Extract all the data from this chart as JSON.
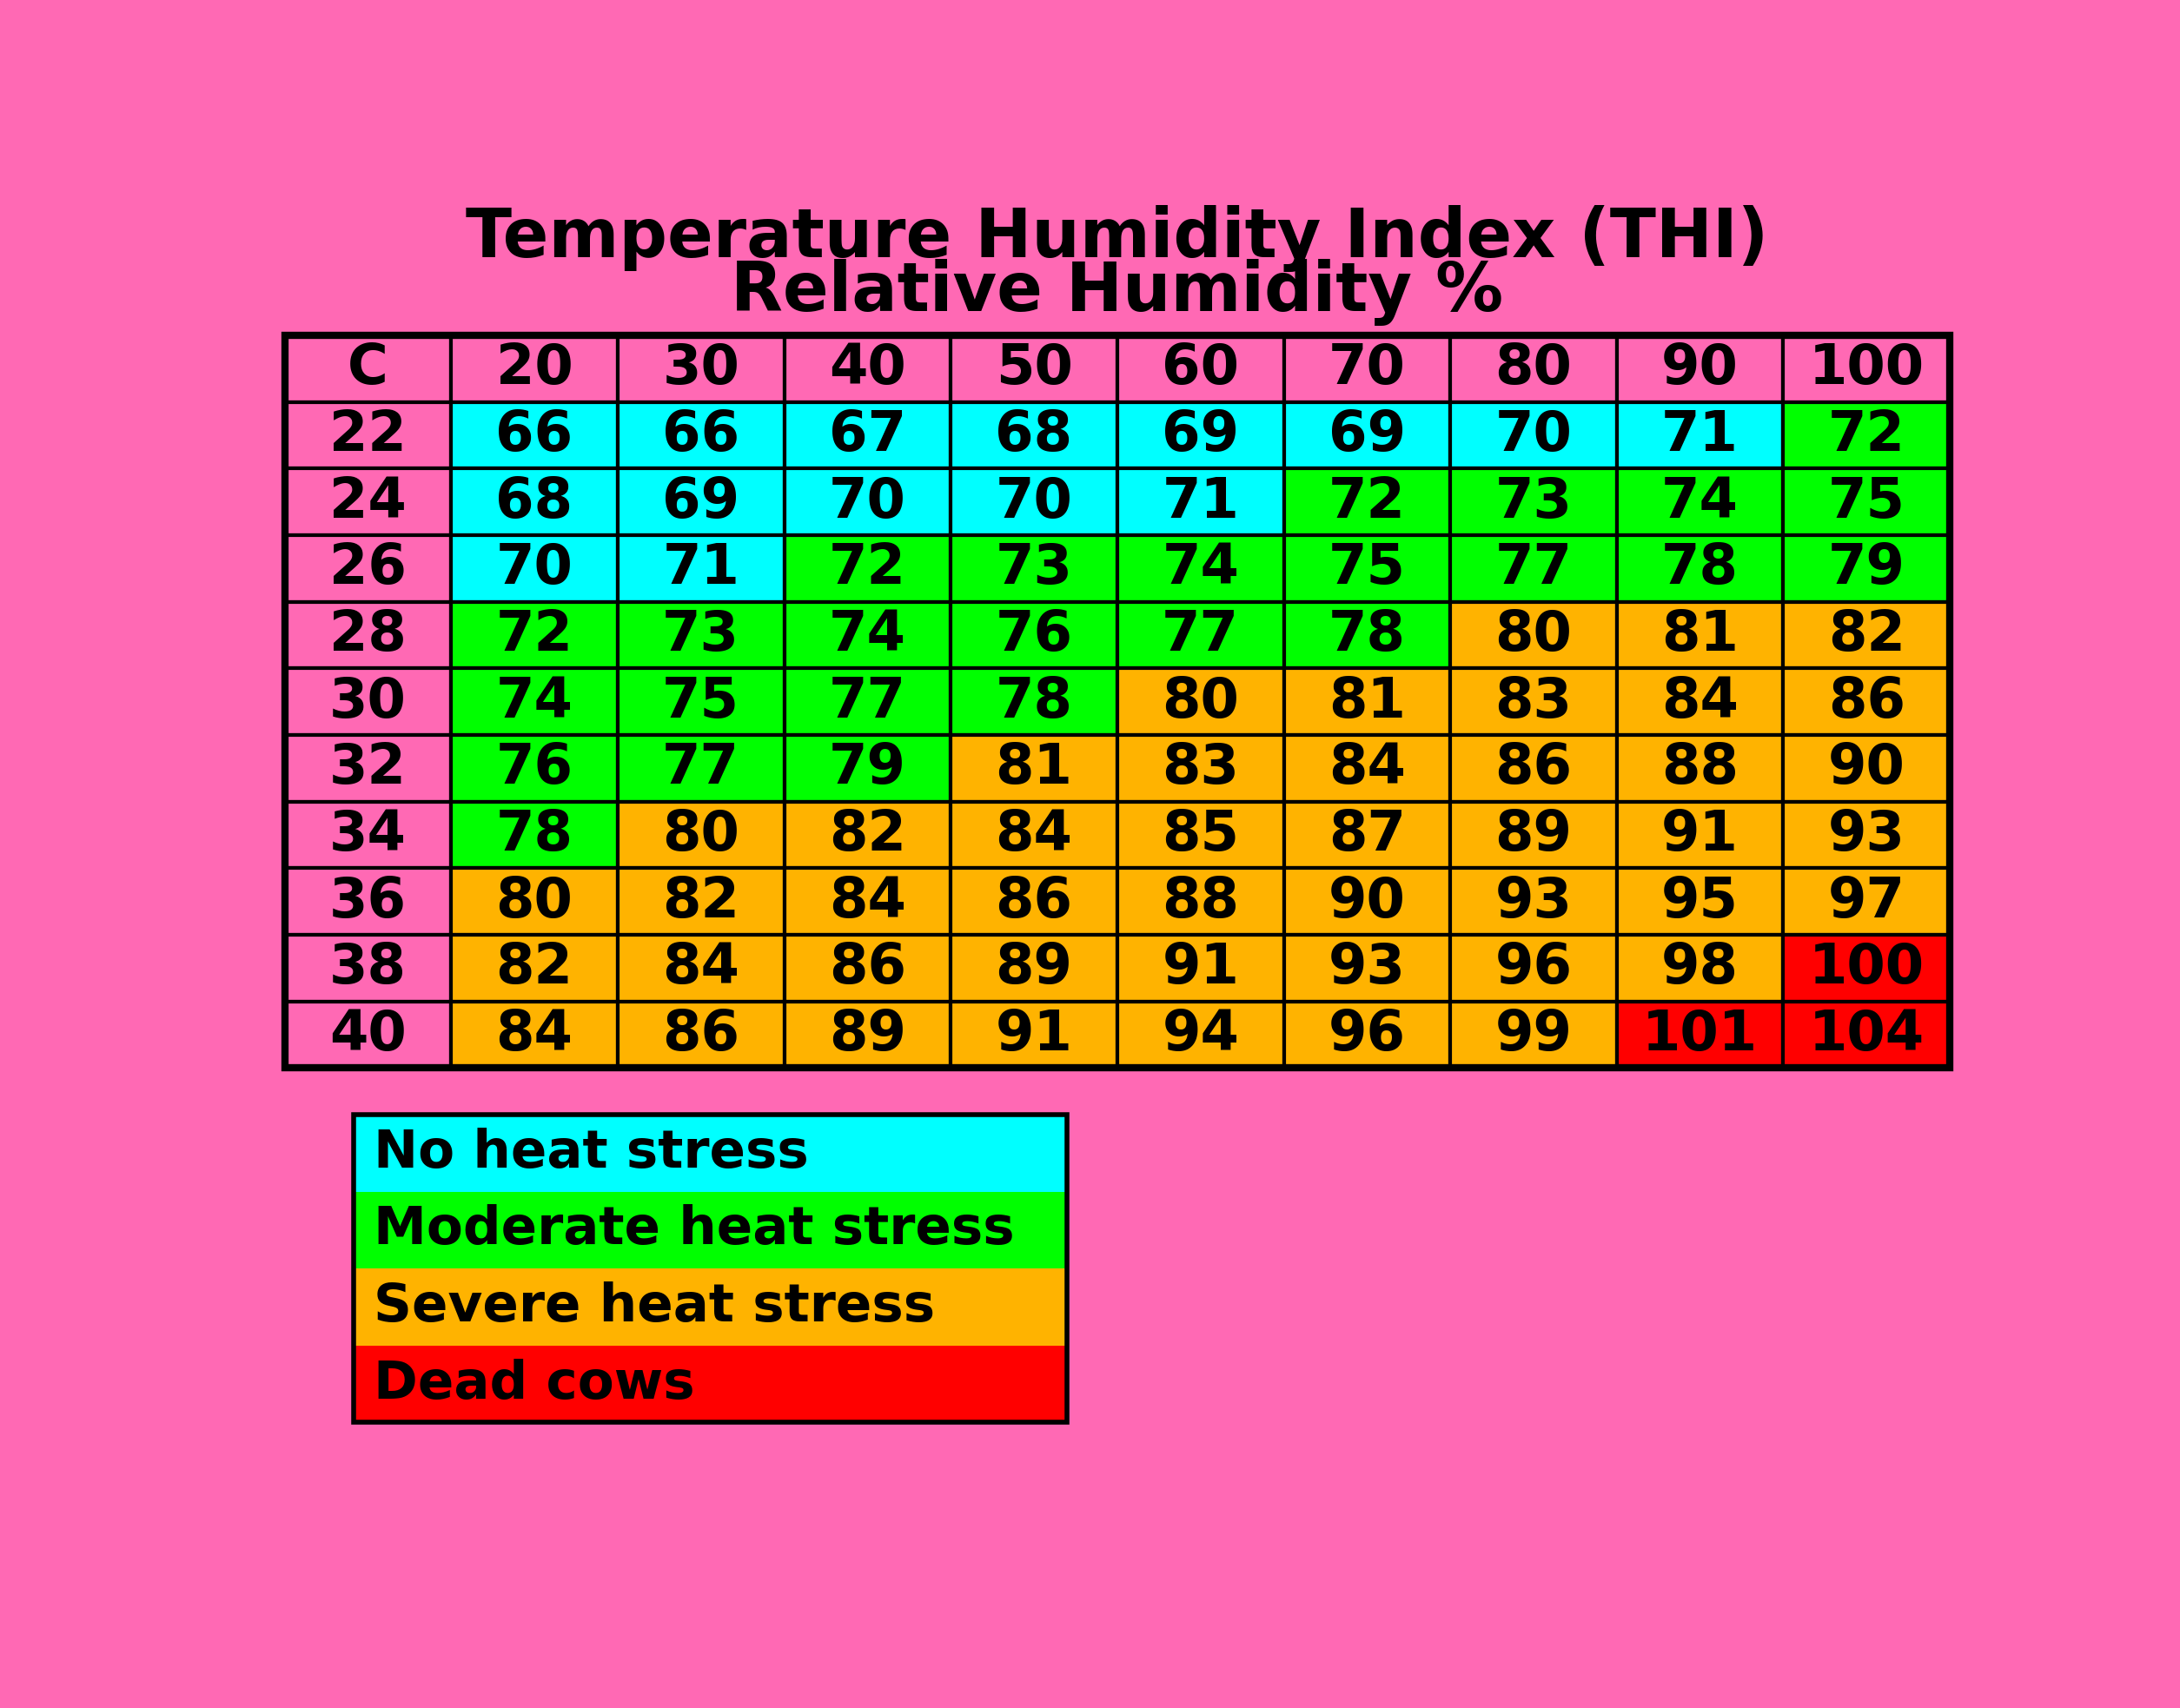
{
  "title_line1": "Temperature Humidity Index (THI)",
  "title_line2": "Relative Humidity %",
  "background_color": "#FF69B4",
  "col_headers": [
    "C",
    "20",
    "30",
    "40",
    "50",
    "60",
    "70",
    "80",
    "90",
    "100"
  ],
  "row_headers": [
    "22",
    "24",
    "26",
    "28",
    "30",
    "32",
    "34",
    "36",
    "38",
    "40"
  ],
  "table_data": [
    [
      66,
      66,
      67,
      68,
      69,
      69,
      70,
      71,
      72
    ],
    [
      68,
      69,
      70,
      70,
      71,
      72,
      73,
      74,
      75
    ],
    [
      70,
      71,
      72,
      73,
      74,
      75,
      77,
      78,
      79
    ],
    [
      72,
      73,
      74,
      76,
      77,
      78,
      80,
      81,
      82
    ],
    [
      74,
      75,
      77,
      78,
      80,
      81,
      83,
      84,
      86
    ],
    [
      76,
      77,
      79,
      81,
      83,
      84,
      86,
      88,
      90
    ],
    [
      78,
      80,
      82,
      84,
      85,
      87,
      89,
      91,
      93
    ],
    [
      80,
      82,
      84,
      86,
      88,
      90,
      93,
      95,
      97
    ],
    [
      82,
      84,
      86,
      89,
      91,
      93,
      96,
      98,
      100
    ],
    [
      84,
      86,
      89,
      91,
      94,
      96,
      99,
      101,
      104
    ]
  ],
  "cell_colors": [
    [
      "#00FFFF",
      "#00FFFF",
      "#00FFFF",
      "#00FFFF",
      "#00FFFF",
      "#00FFFF",
      "#00FFFF",
      "#00FFFF",
      "#00FF00"
    ],
    [
      "#00FFFF",
      "#00FFFF",
      "#00FFFF",
      "#00FFFF",
      "#00FFFF",
      "#00FF00",
      "#00FF00",
      "#00FF00",
      "#00FF00"
    ],
    [
      "#00FFFF",
      "#00FFFF",
      "#00FF00",
      "#00FF00",
      "#00FF00",
      "#00FF00",
      "#00FF00",
      "#00FF00",
      "#00FF00"
    ],
    [
      "#00FF00",
      "#00FF00",
      "#00FF00",
      "#00FF00",
      "#00FF00",
      "#00FF00",
      "#FFB300",
      "#FFB300",
      "#FFB300"
    ],
    [
      "#00FF00",
      "#00FF00",
      "#00FF00",
      "#00FF00",
      "#FFB300",
      "#FFB300",
      "#FFB300",
      "#FFB300",
      "#FFB300"
    ],
    [
      "#00FF00",
      "#00FF00",
      "#00FF00",
      "#FFB300",
      "#FFB300",
      "#FFB300",
      "#FFB300",
      "#FFB300",
      "#FFB300"
    ],
    [
      "#00FF00",
      "#FFB300",
      "#FFB300",
      "#FFB300",
      "#FFB300",
      "#FFB300",
      "#FFB300",
      "#FFB300",
      "#FFB300"
    ],
    [
      "#FFB300",
      "#FFB300",
      "#FFB300",
      "#FFB300",
      "#FFB300",
      "#FFB300",
      "#FFB300",
      "#FFB300",
      "#FFB300"
    ],
    [
      "#FFB300",
      "#FFB300",
      "#FFB300",
      "#FFB300",
      "#FFB300",
      "#FFB300",
      "#FFB300",
      "#FFB300",
      "#FF0000"
    ],
    [
      "#FFB300",
      "#FFB300",
      "#FFB300",
      "#FFB300",
      "#FFB300",
      "#FFB300",
      "#FFB300",
      "#FF0000",
      "#FF0000"
    ]
  ],
  "legend_items": [
    {
      "label": "No heat stress",
      "color": "#00FFFF"
    },
    {
      "label": "Moderate heat stress",
      "color": "#00FF00"
    },
    {
      "label": "Severe heat stress",
      "color": "#FFB300"
    },
    {
      "label": "Dead cows",
      "color": "#FF0000"
    }
  ],
  "text_color": "#000000",
  "border_color": "#000000",
  "header_bg": "#FF69B4",
  "title_fontsize": 56,
  "header_fontsize": 46,
  "cell_fontsize": 46,
  "legend_fontsize": 44
}
